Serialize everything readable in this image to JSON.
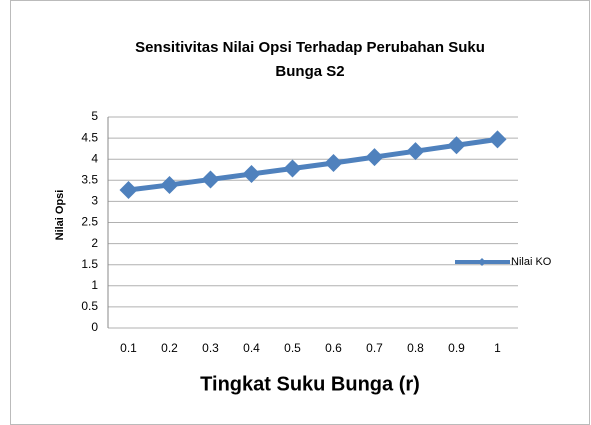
{
  "chart_data": {
    "type": "line",
    "title": [
      "Sensitivitas Nilai Opsi Terhadap Perubahan Suku",
      "Bunga  S2"
    ],
    "x_label": "Tingkat Suku Bunga (r)",
    "y_label": "Nilai Opsi",
    "categories": [
      "0.1",
      "0.2",
      "0.3",
      "0.4",
      "0.5",
      "0.6",
      "0.7",
      "0.8",
      "0.9",
      "1"
    ],
    "series": [
      {
        "name": "Nilai KO",
        "color": "#4f81bd",
        "values": [
          3.27,
          3.39,
          3.52,
          3.65,
          3.78,
          3.91,
          4.05,
          4.19,
          4.33,
          4.47
        ]
      }
    ],
    "ylim": [
      0,
      5
    ],
    "yticks": [
      0,
      0.5,
      1,
      1.5,
      2,
      2.5,
      3,
      3.5,
      4,
      4.5,
      5
    ],
    "grid": true,
    "legend": "right"
  }
}
